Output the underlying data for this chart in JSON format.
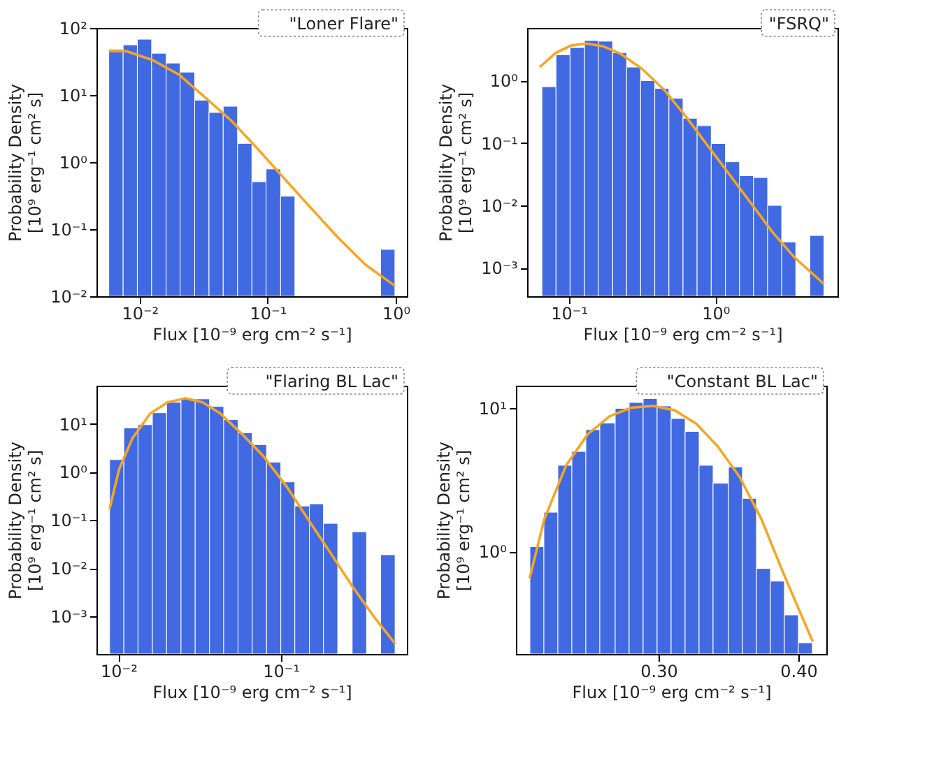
{
  "chart_data": [
    {
      "type": "histogram",
      "log": "xy",
      "color": "#4169e1",
      "xlabel": "Flux [10⁻⁹ erg cm⁻² s⁻¹]",
      "ylabel": "Probability Density\n[10⁹ erg⁻¹ cm² s]",
      "annotations": [
        "\"Loner Flare\""
      ],
      "xlim": [
        0.0046,
        1.22
      ],
      "ylim": [
        0.01,
        100
      ],
      "xticks": [
        {
          "value": 0.01,
          "label": "10⁻²"
        },
        {
          "value": 0.1,
          "label": "10⁻¹"
        },
        {
          "value": 1,
          "label": "10⁰"
        }
      ],
      "yticks": [
        {
          "value": 0.01,
          "label": "10⁻²"
        },
        {
          "value": 0.1,
          "label": "10⁻¹"
        },
        {
          "value": 1,
          "label": "10⁰"
        },
        {
          "value": 10,
          "label": "10¹"
        },
        {
          "value": 100,
          "label": "10²"
        }
      ],
      "bins": [
        0.00574,
        0.00743,
        0.00959,
        0.0124,
        0.0161,
        0.0207,
        0.0269,
        0.0348,
        0.0449,
        0.0581,
        0.0752,
        0.0971,
        0.126,
        0.163,
        0.76,
        0.984
      ],
      "values": [
        48,
        56,
        68,
        42,
        30,
        22,
        8.4,
        5.5,
        6.8,
        1.9,
        0.51,
        0.79,
        0.31,
        null,
        0.05
      ],
      "series": [
        {
          "type": "line",
          "color": "#f5a623",
          "x": [
            0.00574,
            0.00788,
            0.0127,
            0.0204,
            0.0329,
            0.053,
            0.0853,
            0.137,
            0.221,
            0.356,
            0.574,
            0.984
          ],
          "values": [
            45,
            45,
            33,
            20,
            9,
            4,
            1.5,
            0.55,
            0.2,
            0.074,
            0.03,
            0.0143
          ]
        }
      ]
    },
    {
      "type": "histogram",
      "log": "xy",
      "color": "#4169e1",
      "xlabel": "Flux [10⁻⁹ erg cm⁻² s⁻¹]",
      "ylabel": "Probability Density\n[10⁹ erg⁻¹ cm² s]",
      "annotations": [
        "\"FSRQ\""
      ],
      "xlim": [
        0.052,
        6.8
      ],
      "ylim": [
        0.00035,
        7
      ],
      "xticks": [
        {
          "value": 0.1,
          "label": "10⁻¹"
        },
        {
          "value": 1,
          "label": "10⁰"
        }
      ],
      "yticks": [
        {
          "value": 0.001,
          "label": "10⁻³"
        },
        {
          "value": 0.01,
          "label": "10⁻²"
        },
        {
          "value": 0.1,
          "label": "10⁻¹"
        },
        {
          "value": 1,
          "label": "10⁰"
        }
      ],
      "bins": [
        0.0656,
        0.0818,
        0.102,
        0.128,
        0.159,
        0.199,
        0.248,
        0.309,
        0.386,
        0.482,
        0.601,
        0.75,
        0.936,
        1.17,
        1.46,
        1.82,
        2.27,
        2.83,
        3.53,
        4.41,
        5.5
      ],
      "values": [
        0.8,
        2.6,
        3.4,
        4.4,
        4.3,
        2.8,
        1.65,
        1.0,
        0.75,
        0.52,
        0.25,
        0.19,
        0.098,
        0.05,
        0.03,
        0.028,
        0.01,
        0.0026,
        null,
        0.0033
      ],
      "series": [
        {
          "type": "line",
          "color": "#f5a623",
          "x": [
            0.0634,
            0.0815,
            0.1035,
            0.131,
            0.172,
            0.226,
            0.318,
            0.448,
            0.629,
            0.885,
            1.245,
            1.75,
            2.46,
            3.45,
            5.5
          ],
          "values": [
            1.65,
            2.8,
            3.65,
            3.95,
            3.55,
            2.7,
            1.53,
            0.71,
            0.265,
            0.091,
            0.0314,
            0.0108,
            0.0037,
            0.00148,
            0.00055
          ]
        }
      ]
    },
    {
      "type": "histogram",
      "log": "xy",
      "color": "#4169e1",
      "xlabel": "Flux [10⁻⁹ erg cm⁻² s⁻¹]",
      "ylabel": "Probability Density\n[10⁹ erg⁻¹ cm² s]",
      "annotations": [
        "\"Flaring BL Lac\""
      ],
      "xlim": [
        0.00733,
        0.597
      ],
      "ylim": [
        0.000164,
        62
      ],
      "xticks": [
        {
          "value": 0.01,
          "label": "10⁻²"
        },
        {
          "value": 0.1,
          "label": "10⁻¹"
        }
      ],
      "yticks": [
        {
          "value": 0.001,
          "label": "10⁻³"
        },
        {
          "value": 0.01,
          "label": "10⁻²"
        },
        {
          "value": 0.1,
          "label": "10⁻¹"
        },
        {
          "value": 1,
          "label": "10⁰"
        },
        {
          "value": 10,
          "label": "10¹"
        }
      ],
      "bins": [
        0.00883,
        0.0108,
        0.0132,
        0.0162,
        0.0198,
        0.0243,
        0.0297,
        0.0364,
        0.0445,
        0.0545,
        0.0667,
        0.0817,
        0.1,
        0.122,
        0.15,
        0.183,
        0.224,
        0.275,
        0.337,
        0.412,
        0.505
      ],
      "values": [
        1.8,
        8.2,
        9.6,
        17,
        28,
        33,
        33,
        23,
        12.2,
        6.5,
        3.7,
        1.6,
        0.62,
        0.196,
        0.217,
        0.085,
        null,
        0.057,
        null,
        0.019
      ],
      "series": [
        {
          "type": "line",
          "color": "#f5a623",
          "x": [
            0.00883,
            0.0101,
            0.0122,
            0.0157,
            0.0201,
            0.0258,
            0.033,
            0.0424,
            0.0578,
            0.0789,
            0.108,
            0.147,
            0.201,
            0.274,
            0.374,
            0.505
          ],
          "values": [
            0.171,
            1.13,
            5.0,
            16.4,
            28,
            34,
            28,
            16.4,
            6.1,
            2.04,
            0.51,
            0.104,
            0.0213,
            0.0043,
            0.00098,
            0.00027
          ]
        }
      ]
    },
    {
      "type": "histogram",
      "log": "y",
      "color": "#4169e1",
      "xlabel": "Flux [10⁻⁹ erg cm⁻² s⁻¹]",
      "ylabel": "Probability Density\n[10⁹ erg⁻¹ cm² s]",
      "annotations": [
        "\"Constant BL Lac\""
      ],
      "xlim": [
        0.198,
        0.42
      ],
      "ylim": [
        0.192,
        14.4
      ],
      "xticks": [
        {
          "value": 0.3,
          "label": "0.30"
        },
        {
          "value": 0.4,
          "label": "0.40"
        }
      ],
      "yticks": [
        {
          "value": 1,
          "label": "10⁰"
        },
        {
          "value": 10,
          "label": "10¹"
        }
      ],
      "bins": [
        0.208,
        0.218,
        0.228,
        0.238,
        0.248,
        0.258,
        0.269,
        0.279,
        0.289,
        0.299,
        0.309,
        0.319,
        0.329,
        0.339,
        0.35,
        0.36,
        0.37,
        0.38,
        0.39,
        0.4,
        0.41
      ],
      "values": [
        1.08,
        1.88,
        4.0,
        5.0,
        7.1,
        7.9,
        10.0,
        11.0,
        11.7,
        10.4,
        8.5,
        6.9,
        4.0,
        3.0,
        3.9,
        2.35,
        0.76,
        0.62,
        0.36,
        0.23
      ],
      "series": [
        {
          "type": "line",
          "color": "#f5a623",
          "x": [
            0.2078,
            0.2183,
            0.2339,
            0.2494,
            0.2649,
            0.2804,
            0.296,
            0.3115,
            0.327,
            0.3425,
            0.3581,
            0.3736,
            0.3891,
            0.4102
          ],
          "values": [
            0.65,
            1.68,
            4.0,
            6.6,
            8.8,
            10.1,
            10.4,
            9.7,
            7.8,
            5.4,
            3.3,
            1.68,
            0.71,
            0.235
          ]
        }
      ]
    }
  ]
}
